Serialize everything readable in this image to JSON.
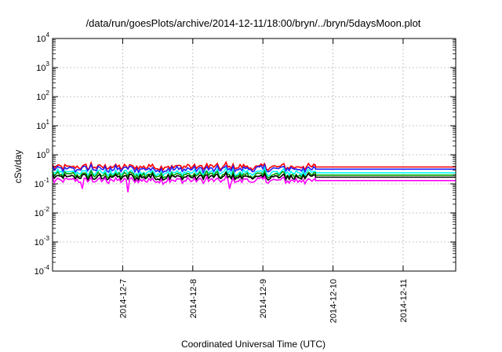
{
  "chart_data": {
    "type": "line",
    "title": "/data/run/goesPlots/archive/2014-12-11/18:00/bryn/../bryn/5daysMoon.plot",
    "xlabel": "Coordinated Universal Time (UTC)",
    "ylabel": "cSv/day",
    "yscale": "log",
    "ylim": [
      0.0001,
      10000
    ],
    "xlim": [
      "2014-12-06",
      "2014-12-11 18:00"
    ],
    "x_ticks": [
      "2014-12-7",
      "2014-12-8",
      "2014-12-9",
      "2014-12-10",
      "2014-12-11"
    ],
    "y_ticks": [
      {
        "base": "10",
        "exp": "-4"
      },
      {
        "base": "10",
        "exp": "-3"
      },
      {
        "base": "10",
        "exp": "-2"
      },
      {
        "base": "10",
        "exp": "-1"
      },
      {
        "base": "10",
        "exp": "0"
      },
      {
        "base": "10",
        "exp": "1"
      },
      {
        "base": "10",
        "exp": "2"
      },
      {
        "base": "10",
        "exp": "3"
      },
      {
        "base": "10",
        "exp": "4"
      }
    ],
    "grid": true,
    "data_end": "2014-12-09 18:00",
    "series": [
      {
        "color": "#ff0000",
        "level": 0.38
      },
      {
        "color": "#2020ff",
        "level": 0.32
      },
      {
        "color": "#00ffff",
        "level": 0.24
      },
      {
        "color": "#00a000",
        "level": 0.2
      },
      {
        "color": "#000000",
        "level": 0.17
      },
      {
        "color": "#ff00ff",
        "level": 0.13
      }
    ]
  }
}
